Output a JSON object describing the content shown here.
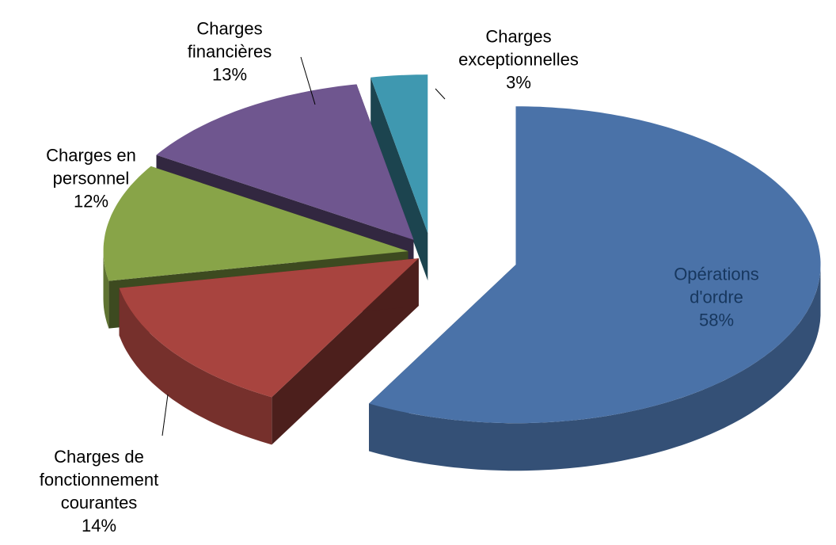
{
  "chart_data": {
    "type": "pie3d",
    "categories": [
      "Opérations d'ordre",
      "Charges de fonctionnement courantes",
      "Charges en personnel",
      "Charges financières",
      "Charges exceptionnelles"
    ],
    "values": [
      58,
      14,
      12,
      13,
      3
    ],
    "value_labels": [
      "58%",
      "14%",
      "12%",
      "13%",
      "3%"
    ],
    "colors": [
      "#4a72a8",
      "#a8443f",
      "#88a448",
      "#6f568f",
      "#3f98b0"
    ],
    "label_colors": [
      "#17375e",
      "#000000",
      "#000000",
      "#000000",
      "#000000"
    ]
  }
}
